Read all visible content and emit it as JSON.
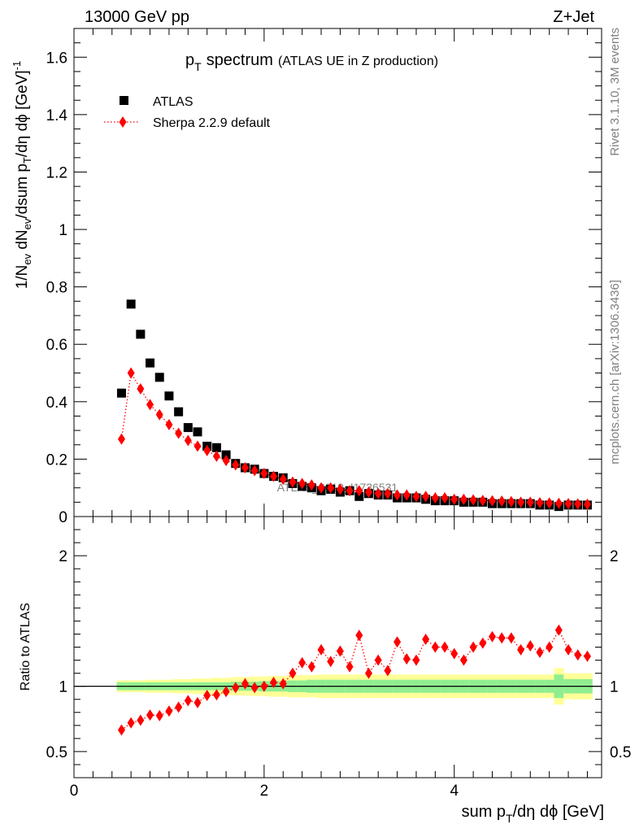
{
  "header": {
    "left": "13000 GeV pp",
    "right": "Z+Jet"
  },
  "side_text": {
    "rivet": "Rivet 3.1.10,  3M events",
    "mcplots": "mcplots.cern.ch [arXiv:1306.3436]"
  },
  "chart_data": [
    {
      "type": "scatter",
      "title_main": "p",
      "title_sub": "T",
      "title_word": "spectrum",
      "title_extra": "(ATLAS UE in Z production)",
      "watermark": "ATLAS_2019_I1736531",
      "xlabel": "sum p_T/dη dϕ [GeV]",
      "ylabel": "1/N_ev dN_ev/dsum p_T/dη dϕ [GeV]^-1",
      "xlim": [
        0,
        5.55
      ],
      "ylim": [
        0,
        1.7
      ],
      "yticks": [
        "0",
        "0.2",
        "0.4",
        "0.6",
        "0.8",
        "1",
        "1.2",
        "1.4",
        "1.6"
      ],
      "ytick_values": [
        0,
        0.2,
        0.4,
        0.6,
        0.8,
        1.0,
        1.2,
        1.4,
        1.6
      ],
      "legend_position": "top-left",
      "series": [
        {
          "name": "ATLAS",
          "marker": "square",
          "color": "#000000",
          "x": [
            0.5,
            0.6,
            0.7,
            0.8,
            0.9,
            1.0,
            1.1,
            1.2,
            1.3,
            1.4,
            1.5,
            1.6,
            1.7,
            1.8,
            1.9,
            2.0,
            2.1,
            2.2,
            2.3,
            2.4,
            2.5,
            2.6,
            2.7,
            2.8,
            2.9,
            3.0,
            3.1,
            3.2,
            3.3,
            3.4,
            3.5,
            3.6,
            3.7,
            3.8,
            3.9,
            4.0,
            4.1,
            4.2,
            4.3,
            4.4,
            4.5,
            4.6,
            4.7,
            4.8,
            4.9,
            5.0,
            5.1,
            5.2,
            5.3,
            5.4
          ],
          "y": [
            0.43,
            0.74,
            0.635,
            0.535,
            0.485,
            0.42,
            0.365,
            0.31,
            0.295,
            0.245,
            0.24,
            0.215,
            0.185,
            0.17,
            0.165,
            0.15,
            0.14,
            0.135,
            0.115,
            0.105,
            0.1,
            0.09,
            0.095,
            0.085,
            0.09,
            0.07,
            0.08,
            0.075,
            0.075,
            0.065,
            0.065,
            0.065,
            0.06,
            0.055,
            0.055,
            0.055,
            0.05,
            0.05,
            0.05,
            0.045,
            0.045,
            0.045,
            0.045,
            0.045,
            0.04,
            0.04,
            0.035,
            0.04,
            0.04,
            0.04
          ]
        },
        {
          "name": "Sherpa 2.2.9 default",
          "marker": "diamond",
          "line": "dotted",
          "color": "#ff0000",
          "x": [
            0.5,
            0.6,
            0.7,
            0.8,
            0.9,
            1.0,
            1.1,
            1.2,
            1.3,
            1.4,
            1.5,
            1.6,
            1.7,
            1.8,
            1.9,
            2.0,
            2.1,
            2.2,
            2.3,
            2.4,
            2.5,
            2.6,
            2.7,
            2.8,
            2.9,
            3.0,
            3.1,
            3.2,
            3.3,
            3.4,
            3.5,
            3.6,
            3.7,
            3.8,
            3.9,
            4.0,
            4.1,
            4.2,
            4.3,
            4.4,
            4.5,
            4.6,
            4.7,
            4.8,
            4.9,
            5.0,
            5.1,
            5.2,
            5.3,
            5.4
          ],
          "y": [
            0.27,
            0.5,
            0.445,
            0.39,
            0.355,
            0.32,
            0.29,
            0.265,
            0.245,
            0.23,
            0.21,
            0.195,
            0.18,
            0.17,
            0.16,
            0.15,
            0.14,
            0.13,
            0.12,
            0.115,
            0.11,
            0.1,
            0.1,
            0.095,
            0.09,
            0.09,
            0.085,
            0.08,
            0.08,
            0.075,
            0.075,
            0.07,
            0.07,
            0.065,
            0.065,
            0.06,
            0.06,
            0.058,
            0.056,
            0.055,
            0.054,
            0.052,
            0.05,
            0.05,
            0.048,
            0.047,
            0.046,
            0.045,
            0.044,
            0.043
          ]
        }
      ]
    },
    {
      "type": "scatter",
      "ylabel": "Ratio to ATLAS",
      "xlabel": "sum p_T/dη dϕ [GeV]",
      "xlim": [
        0,
        5.55
      ],
      "ylim": [
        0.3,
        2.3
      ],
      "xticks": [
        "0",
        "2",
        "4"
      ],
      "xtick_values": [
        0,
        2,
        4
      ],
      "yticks": [
        "0.5",
        "1",
        "2"
      ],
      "ytick_values": [
        0.5,
        1,
        2
      ],
      "reference_line": 1,
      "band_inner_color": "#90ee90",
      "band_outer_color": "#ffff99",
      "band_inner_halfwidth": [
        0.03,
        0.03,
        0.03,
        0.03,
        0.03,
        0.03,
        0.03,
        0.03,
        0.03,
        0.03,
        0.03,
        0.03,
        0.035,
        0.035,
        0.035,
        0.04,
        0.04,
        0.04,
        0.045,
        0.045,
        0.05,
        0.05,
        0.05,
        0.05,
        0.05,
        0.05,
        0.05,
        0.05,
        0.05,
        0.05,
        0.05,
        0.05,
        0.05,
        0.05,
        0.05,
        0.05,
        0.05,
        0.05,
        0.05,
        0.05,
        0.05,
        0.05,
        0.05,
        0.05,
        0.05,
        0.05,
        0.09,
        0.055,
        0.055,
        0.055
      ],
      "band_outer_halfwidth": [
        0.045,
        0.045,
        0.045,
        0.05,
        0.05,
        0.05,
        0.055,
        0.055,
        0.06,
        0.06,
        0.065,
        0.065,
        0.07,
        0.07,
        0.075,
        0.075,
        0.08,
        0.08,
        0.085,
        0.085,
        0.085,
        0.09,
        0.09,
        0.09,
        0.09,
        0.09,
        0.09,
        0.09,
        0.09,
        0.09,
        0.09,
        0.09,
        0.09,
        0.09,
        0.09,
        0.09,
        0.09,
        0.09,
        0.09,
        0.09,
        0.09,
        0.09,
        0.09,
        0.09,
        0.09,
        0.09,
        0.14,
        0.1,
        0.1,
        0.1
      ],
      "series": [
        {
          "name": "Sherpa 2.2.9 default",
          "marker": "diamond",
          "line": "dotted",
          "color": "#ff0000",
          "x": [
            0.5,
            0.6,
            0.7,
            0.8,
            0.9,
            1.0,
            1.1,
            1.2,
            1.3,
            1.4,
            1.5,
            1.6,
            1.7,
            1.8,
            1.9,
            2.0,
            2.1,
            2.2,
            2.3,
            2.4,
            2.5,
            2.6,
            2.7,
            2.8,
            2.9,
            3.0,
            3.1,
            3.2,
            3.3,
            3.4,
            3.5,
            3.6,
            3.7,
            3.8,
            3.9,
            4.0,
            4.1,
            4.2,
            4.3,
            4.4,
            4.5,
            4.6,
            4.7,
            4.8,
            4.9,
            5.0,
            5.1,
            5.2,
            5.3,
            5.4
          ],
          "y": [
            0.665,
            0.72,
            0.74,
            0.78,
            0.775,
            0.81,
            0.84,
            0.89,
            0.875,
            0.93,
            0.935,
            0.96,
            0.99,
            1.02,
            0.99,
            1.0,
            1.03,
            1.02,
            1.1,
            1.18,
            1.15,
            1.28,
            1.19,
            1.27,
            1.15,
            1.39,
            1.1,
            1.2,
            1.12,
            1.34,
            1.21,
            1.2,
            1.36,
            1.3,
            1.3,
            1.25,
            1.2,
            1.3,
            1.33,
            1.38,
            1.37,
            1.37,
            1.28,
            1.31,
            1.26,
            1.3,
            1.43,
            1.28,
            1.24,
            1.23
          ]
        }
      ]
    }
  ]
}
